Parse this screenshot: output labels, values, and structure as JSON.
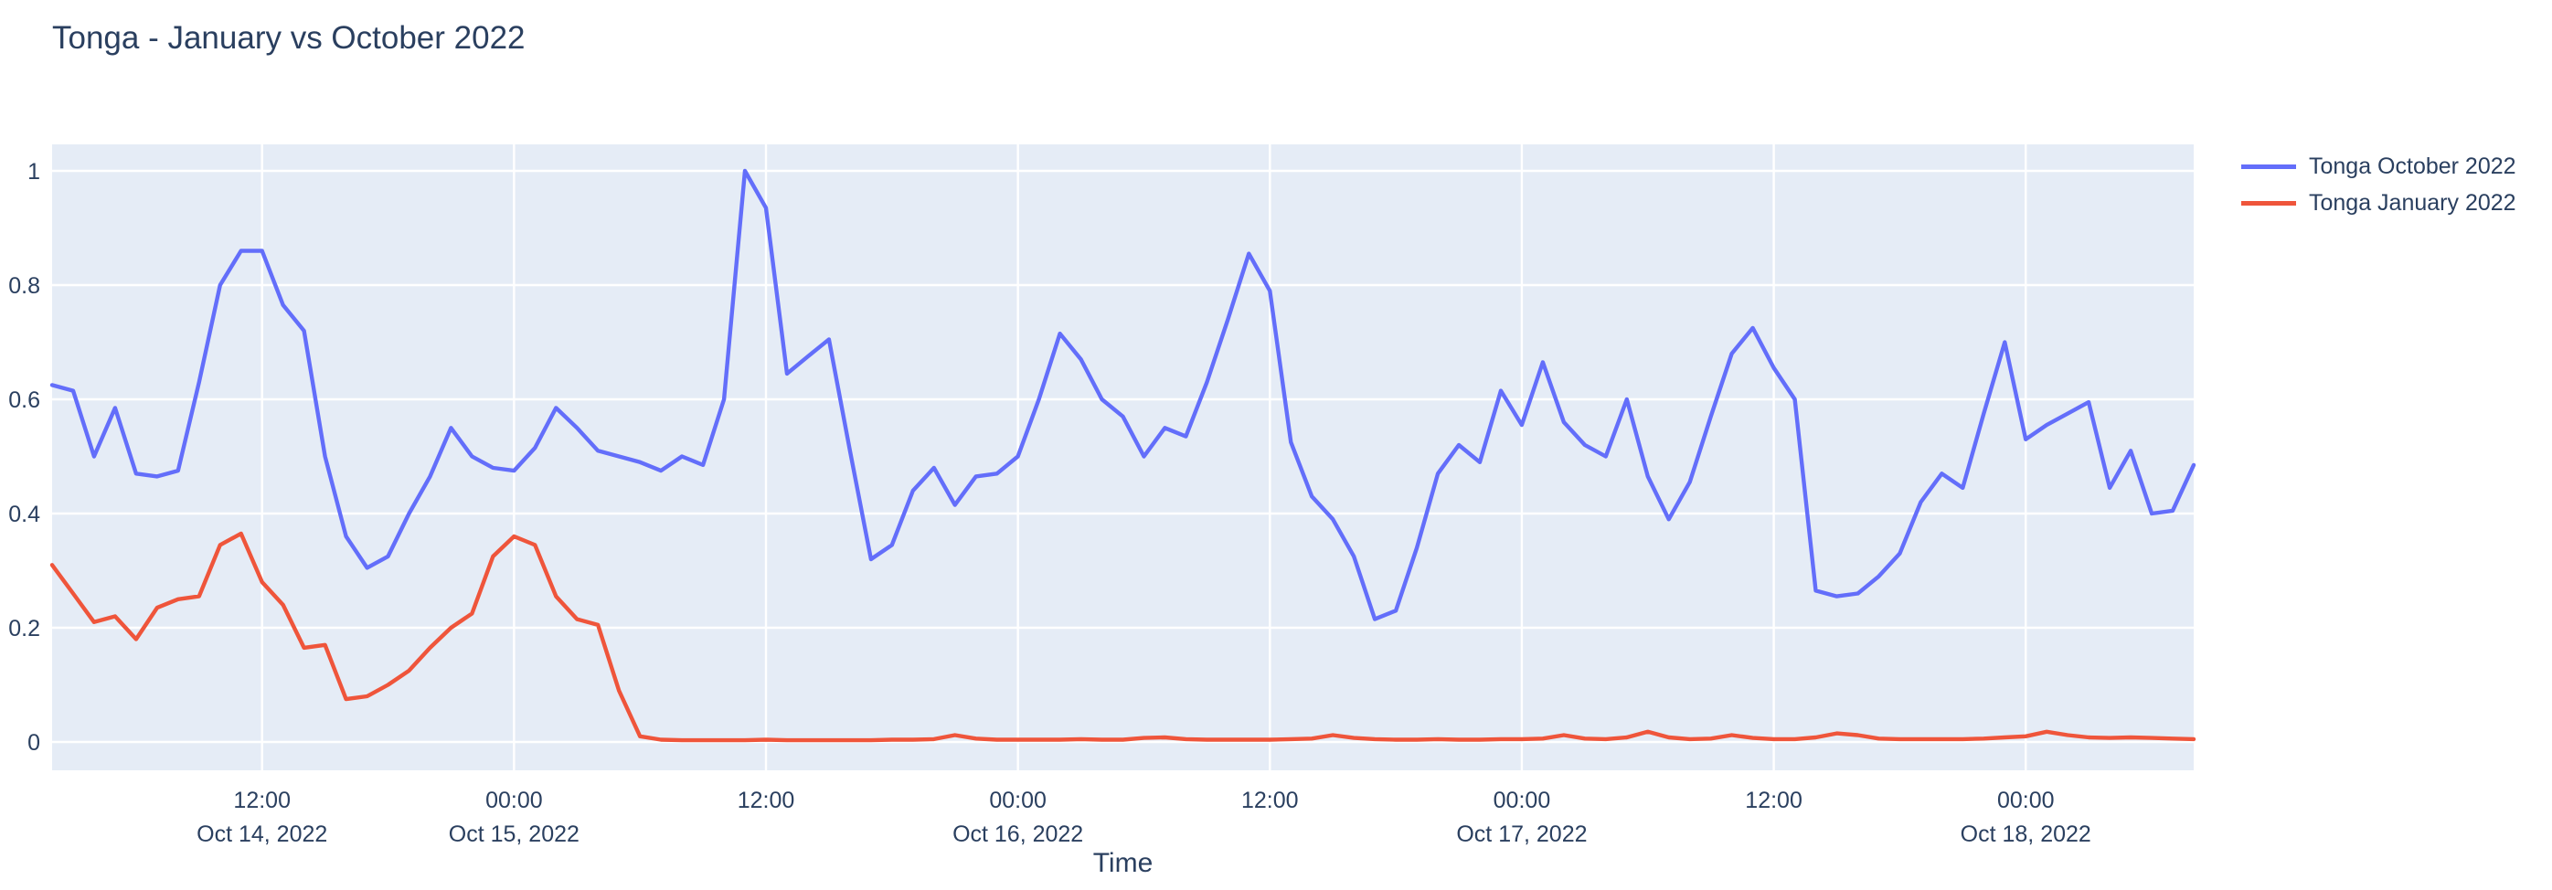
{
  "title": "Tonga - January vs October 2022",
  "chart_data": {
    "type": "line",
    "title": "Tonga - January vs October 2022",
    "xlabel": "Time",
    "ylabel": "",
    "x_start": "2022-10-14 02:00",
    "x_end": "2022-10-18 08:00",
    "x_interval_hours": 1,
    "n_points": 103,
    "ylim": [
      -0.05,
      1.05
    ],
    "grid": true,
    "legend_position": "top-right",
    "plot_bg_color": "#E5ECF6",
    "grid_color": "#FFFFFF",
    "text_color": "#2a3f5f",
    "x_ticks": [
      {
        "hour": 10,
        "line1": "12:00",
        "line2": "Oct 14, 2022"
      },
      {
        "hour": 22,
        "line1": "00:00",
        "line2": "Oct 15, 2022"
      },
      {
        "hour": 34,
        "line1": "12:00",
        "line2": ""
      },
      {
        "hour": 46,
        "line1": "00:00",
        "line2": "Oct 16, 2022"
      },
      {
        "hour": 58,
        "line1": "12:00",
        "line2": ""
      },
      {
        "hour": 70,
        "line1": "00:00",
        "line2": "Oct 17, 2022"
      },
      {
        "hour": 82,
        "line1": "12:00",
        "line2": ""
      },
      {
        "hour": 94,
        "line1": "00:00",
        "line2": "Oct 18, 2022"
      }
    ],
    "y_ticks": [
      {
        "value": 0,
        "label": "0"
      },
      {
        "value": 0.2,
        "label": "0.2"
      },
      {
        "value": 0.4,
        "label": "0.4"
      },
      {
        "value": 0.6,
        "label": "0.6"
      },
      {
        "value": 0.8,
        "label": "0.8"
      },
      {
        "value": 1,
        "label": "1"
      }
    ],
    "series": [
      {
        "name": "Tonga October 2022",
        "color": "#636EFA",
        "values": [
          0.625,
          0.615,
          0.5,
          0.585,
          0.47,
          0.465,
          0.475,
          0.63,
          0.8,
          0.86,
          0.86,
          0.765,
          0.72,
          0.5,
          0.36,
          0.305,
          0.325,
          0.4,
          0.465,
          0.55,
          0.5,
          0.48,
          0.475,
          0.515,
          0.585,
          0.55,
          0.51,
          0.5,
          0.49,
          0.475,
          0.5,
          0.485,
          0.6,
          1.0,
          0.935,
          0.645,
          0.675,
          0.705,
          0.51,
          0.32,
          0.345,
          0.44,
          0.48,
          0.415,
          0.465,
          0.47,
          0.5,
          0.6,
          0.715,
          0.67,
          0.6,
          0.57,
          0.5,
          0.55,
          0.535,
          0.63,
          0.74,
          0.855,
          0.79,
          0.525,
          0.43,
          0.39,
          0.325,
          0.215,
          0.23,
          0.34,
          0.47,
          0.52,
          0.49,
          0.615,
          0.555,
          0.665,
          0.56,
          0.52,
          0.5,
          0.6,
          0.465,
          0.39,
          0.455,
          0.57,
          0.68,
          0.725,
          0.655,
          0.6,
          0.265,
          0.255,
          0.26,
          0.29,
          0.33,
          0.42,
          0.47,
          0.445,
          0.575,
          0.7,
          0.53,
          0.555,
          0.575,
          0.595,
          0.445,
          0.51,
          0.4,
          0.405,
          0.485
        ]
      },
      {
        "name": "Tonga January 2022",
        "color": "#EF553B",
        "values": [
          0.31,
          0.26,
          0.21,
          0.22,
          0.18,
          0.235,
          0.25,
          0.255,
          0.345,
          0.365,
          0.28,
          0.24,
          0.165,
          0.17,
          0.075,
          0.08,
          0.1,
          0.125,
          0.165,
          0.2,
          0.225,
          0.325,
          0.36,
          0.345,
          0.255,
          0.215,
          0.205,
          0.09,
          0.01,
          0.004,
          0.003,
          0.003,
          0.003,
          0.003,
          0.004,
          0.003,
          0.003,
          0.003,
          0.003,
          0.003,
          0.004,
          0.004,
          0.005,
          0.012,
          0.006,
          0.004,
          0.004,
          0.004,
          0.004,
          0.005,
          0.004,
          0.004,
          0.007,
          0.008,
          0.005,
          0.004,
          0.004,
          0.004,
          0.004,
          0.005,
          0.006,
          0.012,
          0.007,
          0.005,
          0.004,
          0.004,
          0.005,
          0.004,
          0.004,
          0.005,
          0.005,
          0.006,
          0.012,
          0.006,
          0.005,
          0.008,
          0.018,
          0.008,
          0.005,
          0.006,
          0.012,
          0.007,
          0.005,
          0.005,
          0.008,
          0.015,
          0.012,
          0.006,
          0.005,
          0.005,
          0.005,
          0.005,
          0.006,
          0.008,
          0.01,
          0.018,
          0.012,
          0.008,
          0.007,
          0.008,
          0.007,
          0.006,
          0.005
        ]
      }
    ]
  }
}
